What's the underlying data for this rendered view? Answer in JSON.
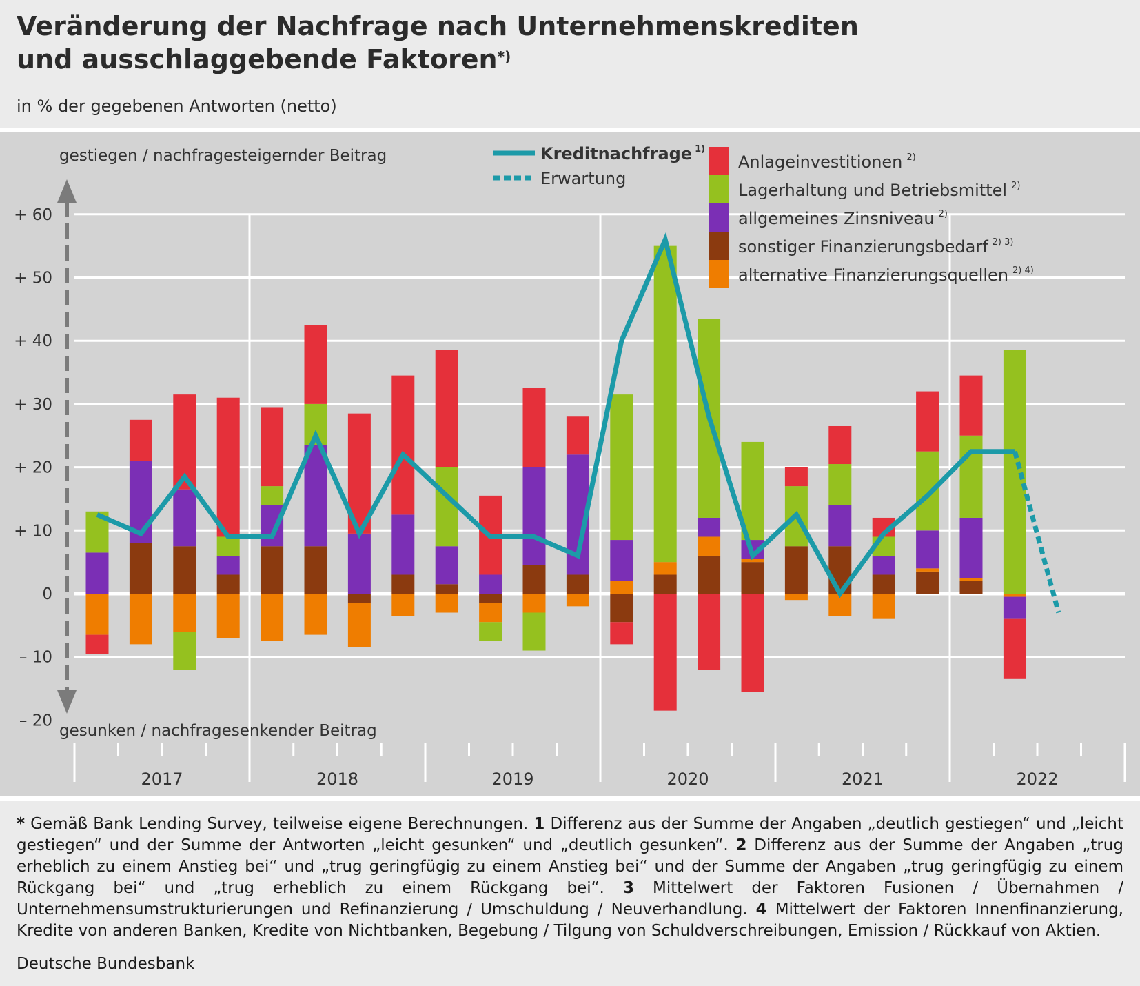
{
  "header": {
    "title_line1": "Veränderung der Nachfrage nach Unternehmenskrediten",
    "title_line2": "und ausschlaggebende Faktoren",
    "title_mark": "*)",
    "subtitle": "in % der gegebenen Antworten (netto)"
  },
  "footnote": {
    "star": "*",
    "t0": " Gemäß Bank Lending Survey, teilweise eigene Berechnungen. ",
    "n1": "1",
    "t1": " Differenz aus der Summe der Angaben „deutlich gestiegen“ und „leicht gestiegen“ und der Summe der Antworten „leicht gesunken“ und „deutlich gesunken“. ",
    "n2": "2",
    "t2": " Differenz aus der Summe der Angaben „trug erheblich zu einem Anstieg bei“ und „trug geringfügig zu einem Anstieg bei“ und der Summe der Angaben „trug geringfügig zu einem Rückgang bei“ und „trug erheblich zu einem Rückgang bei“. ",
    "n3": "3",
    "t3": " Mittelwert der Faktoren Fusionen / Übernahmen / Unternehmensumstrukturierungen und Refinanzierung / Umschuldung / Neuverhandlung. ",
    "n4": "4",
    "t4": " Mittelwert der Faktoren Innenfinanzierung, Kredite von anderen Banken, Kredite von Nichtbanken, Begebung / Tilgung von Schuldverschreibungen, Emission / Rückkauf von Aktien."
  },
  "source": "Deutsche Bundesbank",
  "chart_data": {
    "type": "bar",
    "ylim": [
      -20,
      60
    ],
    "yticks": [
      60,
      50,
      40,
      30,
      20,
      10,
      0,
      -10,
      -20
    ],
    "ytick_labels": [
      "+ 60",
      "+ 50",
      "+ 40",
      "+ 30",
      "+ 20",
      "+ 10",
      "0",
      "– 10",
      "– 20"
    ],
    "ylabel_top": "gestiegen / nachfragesteigernder Beitrag",
    "ylabel_bottom": "gesunken / nachfragesenkender Beitrag",
    "years": [
      "2017",
      "2018",
      "2019",
      "2020",
      "2021",
      "2022"
    ],
    "quarters": [
      "2017 Q1",
      "2017 Q2",
      "2017 Q3",
      "2017 Q4",
      "2018 Q1",
      "2018 Q2",
      "2018 Q3",
      "2018 Q4",
      "2019 Q1",
      "2019 Q2",
      "2019 Q3",
      "2019 Q4",
      "2020 Q1",
      "2020 Q2",
      "2020 Q3",
      "2020 Q4",
      "2021 Q1",
      "2021 Q2",
      "2021 Q3",
      "2021 Q4",
      "2022 Q1",
      "2022 Q2"
    ],
    "series": [
      {
        "name": "sonstiger Finanzierungsbedarf",
        "superscript": "2) 3)",
        "color": "#8b3a0f",
        "values": [
          0,
          8,
          7.5,
          3,
          7.5,
          7.5,
          -1.5,
          3,
          1.5,
          -1.5,
          4.5,
          3,
          -4.5,
          3,
          6,
          5,
          7.5,
          7.5,
          3,
          3.5,
          2,
          0
        ]
      },
      {
        "name": "alternative Finanzierungsquellen",
        "superscript": "2) 4)",
        "color": "#ef7d00",
        "values": [
          -6.5,
          -8,
          -6,
          -7,
          -7.5,
          -6.5,
          -7,
          -3.5,
          -3,
          -3,
          -3,
          -2,
          2,
          2,
          3,
          0.5,
          -1,
          -3.5,
          -4,
          0.5,
          0.5,
          -0.5
        ]
      },
      {
        "name": "allgemeines Zinsniveau",
        "superscript": "2)",
        "color": "#7b2fb5",
        "values": [
          6.5,
          13,
          9,
          3,
          6.5,
          16,
          9.5,
          9.5,
          6,
          3,
          15.5,
          19,
          6.5,
          0,
          3,
          3,
          0,
          6.5,
          3,
          6,
          9.5,
          -3.5
        ]
      },
      {
        "name": "Lagerhaltung und Betriebsmittel",
        "superscript": "2)",
        "color": "#95c11f",
        "values": [
          6.5,
          0,
          -6,
          3,
          3,
          6.5,
          0,
          0,
          12.5,
          -3,
          -6,
          0,
          23,
          50,
          31.5,
          15.5,
          9.5,
          6.5,
          3,
          12.5,
          13,
          38.5
        ]
      },
      {
        "name": "Anlageinvestitionen",
        "superscript": "2)",
        "color": "#e5303a",
        "values": [
          -3,
          6.5,
          15,
          22,
          12.5,
          12.5,
          19,
          22,
          18.5,
          12.5,
          12.5,
          6,
          -3.5,
          -18.5,
          -12,
          -15.5,
          3,
          6,
          3,
          9.5,
          9.5,
          -9.5
        ]
      }
    ],
    "line": {
      "name": "Kreditnachfrage",
      "superscript": "1)",
      "color": "#1c9aa8",
      "values": [
        12.5,
        9.5,
        18.5,
        9,
        9,
        25,
        9.5,
        22,
        15.5,
        9,
        9,
        6,
        40,
        56,
        28,
        6,
        12.5,
        0,
        9.5,
        15.5,
        22.5,
        22.5
      ]
    },
    "expectation": {
      "name": "Erwartung",
      "color": "#1c9aa8",
      "values": [
        22.5,
        -3
      ]
    }
  }
}
